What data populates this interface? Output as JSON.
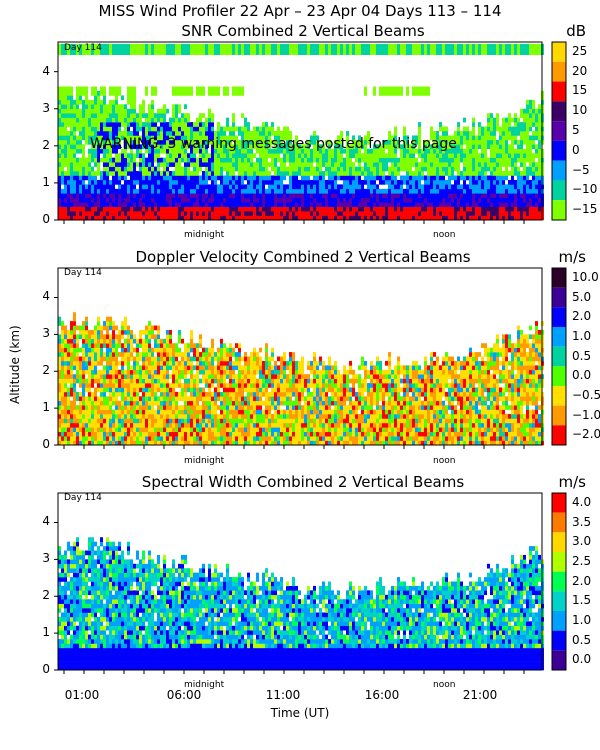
{
  "page": {
    "title": "MISS Wind Profiler  22 Apr – 23 Apr 04 Days 113 – 114",
    "warning": "WARNING: 3 warning messages posted for this page",
    "y_axis_label": "Altitude (km)",
    "x_axis_label": "Time (UT)"
  },
  "chart_data": [
    {
      "type": "heatmap",
      "title": "SNR Combined 2 Vertical Beams",
      "unit": "dB",
      "day_tag": "Day 114",
      "yticks": [
        "0",
        "1",
        "2",
        "3",
        "4"
      ],
      "ylim": [
        0,
        4.8
      ],
      "xmarks": [
        "midnight",
        "noon"
      ],
      "colorbar": {
        "labels": [
          "25",
          "20",
          "15",
          "10",
          "5",
          "0",
          "−5",
          "−10",
          "−15"
        ],
        "colors": [
          "#ffd800",
          "#ff9900",
          "#ff0000",
          "#3a0066",
          "#5a00aa",
          "#0000ff",
          "#00a0ff",
          "#00d2a0",
          "#80ff00"
        ]
      }
    },
    {
      "type": "heatmap",
      "title": "Doppler Velocity Combined 2 Vertical Beams",
      "unit": "m/s",
      "day_tag": "Day 114",
      "yticks": [
        "0",
        "1",
        "2",
        "3",
        "4"
      ],
      "ylim": [
        0,
        4.8
      ],
      "xmarks": [
        "midnight",
        "noon"
      ],
      "colorbar": {
        "labels": [
          "10.0",
          "5.0",
          "2.0",
          "1.0",
          "0.5",
          "0.0",
          "−0.5",
          "−1.0",
          "−2.0"
        ],
        "colors": [
          "#2a0028",
          "#3c0096",
          "#0000ff",
          "#00a0ff",
          "#00d2a0",
          "#50ff00",
          "#ffe000",
          "#ff9a00",
          "#ff0000"
        ]
      }
    },
    {
      "type": "heatmap",
      "title": "Spectral Width Combined 2 Vertical Beams",
      "unit": "m/s",
      "day_tag": "Day 114",
      "yticks": [
        "0",
        "1",
        "2",
        "3",
        "4"
      ],
      "ylim": [
        0,
        4.8
      ],
      "xmarks": [
        "midnight",
        "noon"
      ],
      "colorbar": {
        "labels": [
          "4.0",
          "3.5",
          "3.0",
          "2.5",
          "2.0",
          "1.5",
          "1.0",
          "0.5",
          "0.0"
        ],
        "colors": [
          "#ff0000",
          "#ff7a00",
          "#ffd800",
          "#b0ff00",
          "#00ff50",
          "#00d2c8",
          "#00a0ff",
          "#0000ff",
          "#3c0096"
        ]
      }
    }
  ],
  "x_ticks": [
    "01:00",
    "06:00",
    "11:00",
    "16:00",
    "21:00"
  ]
}
